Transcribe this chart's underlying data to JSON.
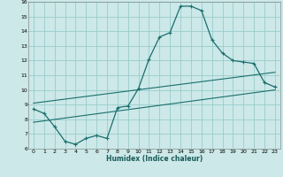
{
  "xlabel": "Humidex (Indice chaleur)",
  "bg_color": "#cce8e8",
  "grid_color": "#99cccc",
  "line_color": "#1a6e6e",
  "xlim": [
    -0.5,
    23.5
  ],
  "ylim": [
    6,
    16
  ],
  "xticks": [
    0,
    1,
    2,
    3,
    4,
    5,
    6,
    7,
    8,
    9,
    10,
    11,
    12,
    13,
    14,
    15,
    16,
    17,
    18,
    19,
    20,
    21,
    22,
    23
  ],
  "yticks": [
    6,
    7,
    8,
    9,
    10,
    11,
    12,
    13,
    14,
    15,
    16
  ],
  "curve1_x": [
    0,
    1,
    2,
    3,
    4,
    5,
    6,
    7,
    8,
    9,
    10,
    11,
    12,
    13,
    14,
    15,
    16,
    17,
    18,
    19,
    20,
    21,
    22,
    23
  ],
  "curve1_y": [
    8.7,
    8.4,
    7.5,
    6.5,
    6.3,
    6.7,
    6.9,
    6.7,
    8.8,
    8.9,
    10.1,
    12.1,
    13.6,
    13.9,
    15.7,
    15.7,
    15.4,
    13.4,
    12.5,
    12.0,
    11.9,
    11.8,
    10.5,
    10.2
  ],
  "curve2_x": [
    0,
    23
  ],
  "curve2_y": [
    9.1,
    11.2
  ],
  "curve3_x": [
    0,
    23
  ],
  "curve3_y": [
    7.8,
    10.0
  ]
}
